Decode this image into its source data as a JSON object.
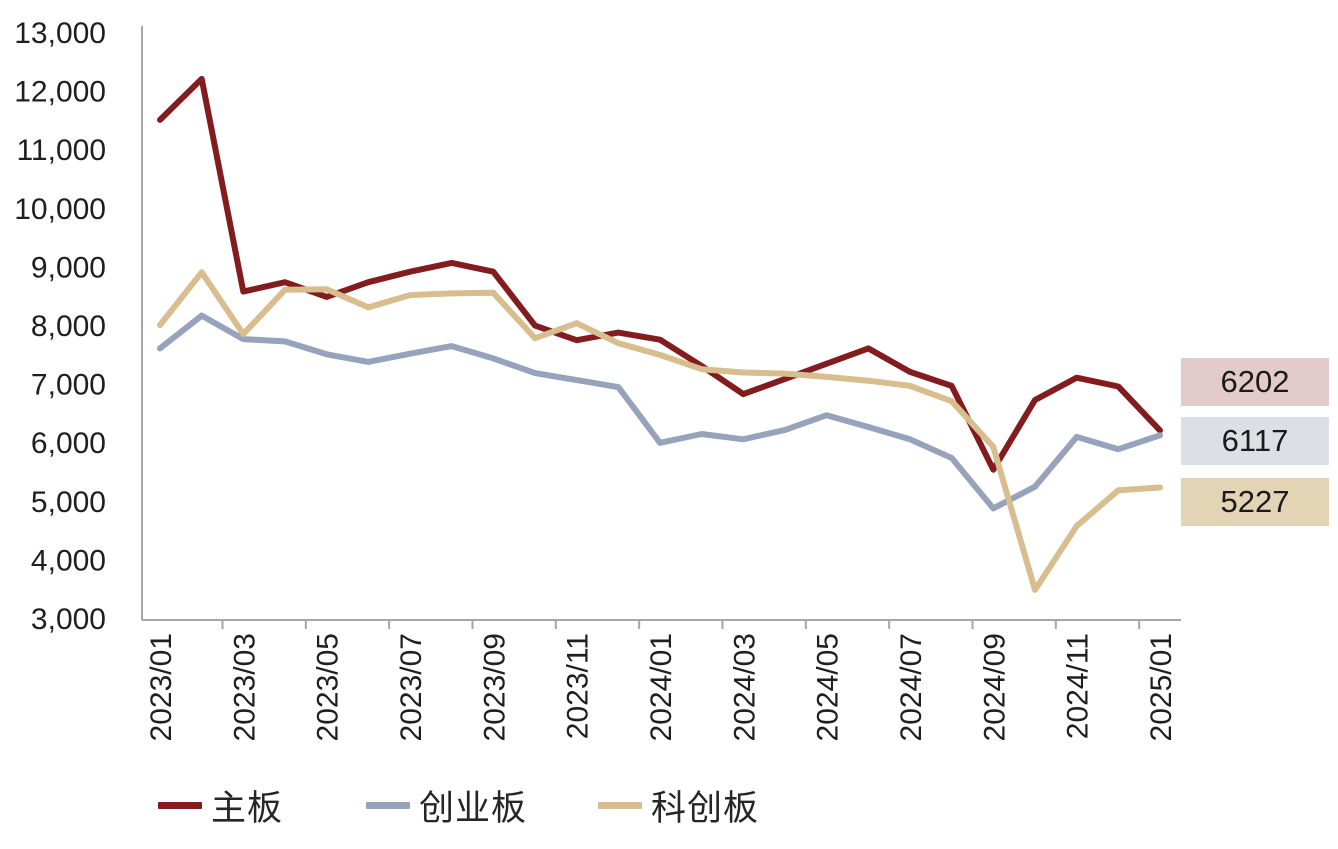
{
  "chart_data": {
    "type": "line",
    "title": "",
    "x": [
      "2023/01",
      "2023/02",
      "2023/03",
      "2023/04",
      "2023/05",
      "2023/06",
      "2023/07",
      "2023/08",
      "2023/09",
      "2023/10",
      "2023/11",
      "2023/12",
      "2024/01",
      "2024/02",
      "2024/03",
      "2024/04",
      "2024/05",
      "2024/06",
      "2024/07",
      "2024/08",
      "2024/09",
      "2024/10",
      "2024/11",
      "2024/12",
      "2025/01"
    ],
    "x_axis_visible_labels": [
      "2023/01",
      "2023/03",
      "2023/05",
      "2023/07",
      "2023/09",
      "2023/11",
      "2024/01",
      "2024/03",
      "2024/05",
      "2024/07",
      "2024/09",
      "2024/11",
      "2025/01"
    ],
    "y_axis": {
      "min": 3000,
      "max": 13000,
      "step": 1000,
      "tick_labels": [
        "3,000",
        "4,000",
        "5,000",
        "6,000",
        "7,000",
        "8,000",
        "9,000",
        "10,000",
        "11,000",
        "12,000",
        "13,000"
      ]
    },
    "series": [
      {
        "name": "主板",
        "color": "#821c1f",
        "values": [
          11500,
          12200,
          8570,
          8730,
          8480,
          8730,
          8910,
          9060,
          8910,
          7990,
          7740,
          7870,
          7750,
          7300,
          6820,
          7080,
          7340,
          7600,
          7200,
          6960,
          5530,
          6720,
          7100,
          6950,
          6202
        ]
      },
      {
        "name": "创业板",
        "color": "#97a2bb",
        "values": [
          7600,
          8160,
          7760,
          7720,
          7500,
          7370,
          7510,
          7640,
          7430,
          7180,
          7060,
          6940,
          5990,
          6140,
          6050,
          6210,
          6460,
          6260,
          6050,
          5730,
          4870,
          5240,
          6090,
          5880,
          6117
        ]
      },
      {
        "name": "科创板",
        "color": "#d8bd8e",
        "values": [
          8000,
          8900,
          7845,
          8600,
          8610,
          8300,
          8510,
          8540,
          8550,
          7775,
          8030,
          7690,
          7490,
          7245,
          7190,
          7170,
          7115,
          7050,
          6960,
          6700,
          5920,
          3480,
          4570,
          5180,
          5227
        ]
      }
    ],
    "end_labels": [
      {
        "value": "6202",
        "series": "主板",
        "bg": "#e4cbcb"
      },
      {
        "value": "6117",
        "series": "创业板",
        "bg": "#dce0e6"
      },
      {
        "value": "5227",
        "series": "科创板",
        "bg": "#e4d4b6"
      }
    ],
    "legend_position": "bottom",
    "grid": false,
    "axis_color": "#a6a6a6",
    "text_color": "#1f1f1f"
  }
}
